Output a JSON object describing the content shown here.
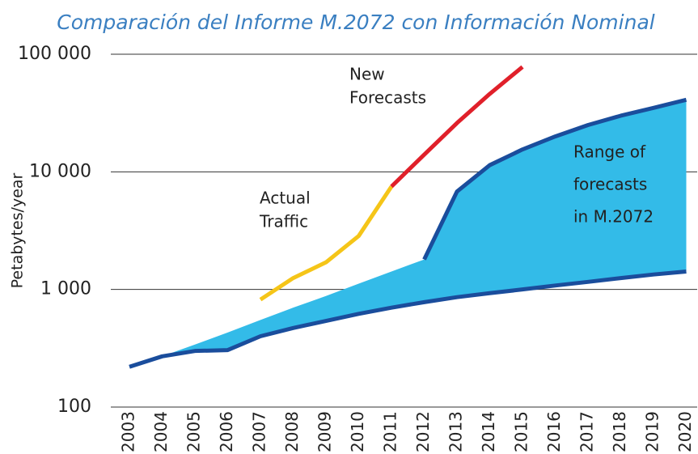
{
  "chart_data": {
    "type": "range-line",
    "title": "Comparación del Informe M.2072 con Información Nominal",
    "y_label": "Petabytes/year",
    "log_y": true,
    "grid": true,
    "categories": [
      "2003",
      "2004",
      "2005",
      "2006",
      "2007",
      "2008",
      "2009",
      "2010",
      "2011",
      "2012",
      "2013",
      "2014",
      "2015",
      "2016",
      "2017",
      "2018",
      "2019",
      "2020"
    ],
    "ylim": [
      100,
      100000
    ],
    "yticks": [
      100,
      {
        "value": 1000,
        "label": "1 000"
      },
      {
        "value": 10000,
        "label": "10 000"
      },
      {
        "value": 100000,
        "label": "100 000"
      }
    ],
    "range": {
      "color": "#33bbe8",
      "line_color": "#1a4d9c",
      "outline_from": "2012",
      "lower": [
        220,
        270,
        300,
        305,
        400,
        470,
        540,
        620,
        700,
        780,
        860,
        930,
        1000,
        1080,
        1160,
        1250,
        1340,
        1420
      ],
      "upper": [
        220,
        270,
        340,
        430,
        550,
        700,
        880,
        1120,
        1420,
        1800,
        6800,
        11400,
        15500,
        20000,
        25000,
        30000,
        35000,
        41000
      ]
    },
    "series": [
      {
        "color": "#f5c518",
        "values": [
          null,
          null,
          null,
          null,
          820,
          1250,
          1700,
          2850,
          7500,
          null,
          null,
          null,
          null,
          null,
          null,
          null,
          null,
          null
        ]
      },
      {
        "color": "#e0202a",
        "values": [
          null,
          null,
          null,
          null,
          null,
          null,
          null,
          null,
          7500,
          14000,
          26000,
          46000,
          78000,
          null,
          null,
          null,
          null,
          null
        ]
      }
    ],
    "annotations": [
      {
        "lines": [
          "New",
          "Forecasts"
        ]
      },
      {
        "lines": [
          "Actual",
          "Traffic"
        ]
      },
      {
        "lines": [
          "Range of",
          "forecasts",
          "in M.2072"
        ]
      }
    ]
  }
}
